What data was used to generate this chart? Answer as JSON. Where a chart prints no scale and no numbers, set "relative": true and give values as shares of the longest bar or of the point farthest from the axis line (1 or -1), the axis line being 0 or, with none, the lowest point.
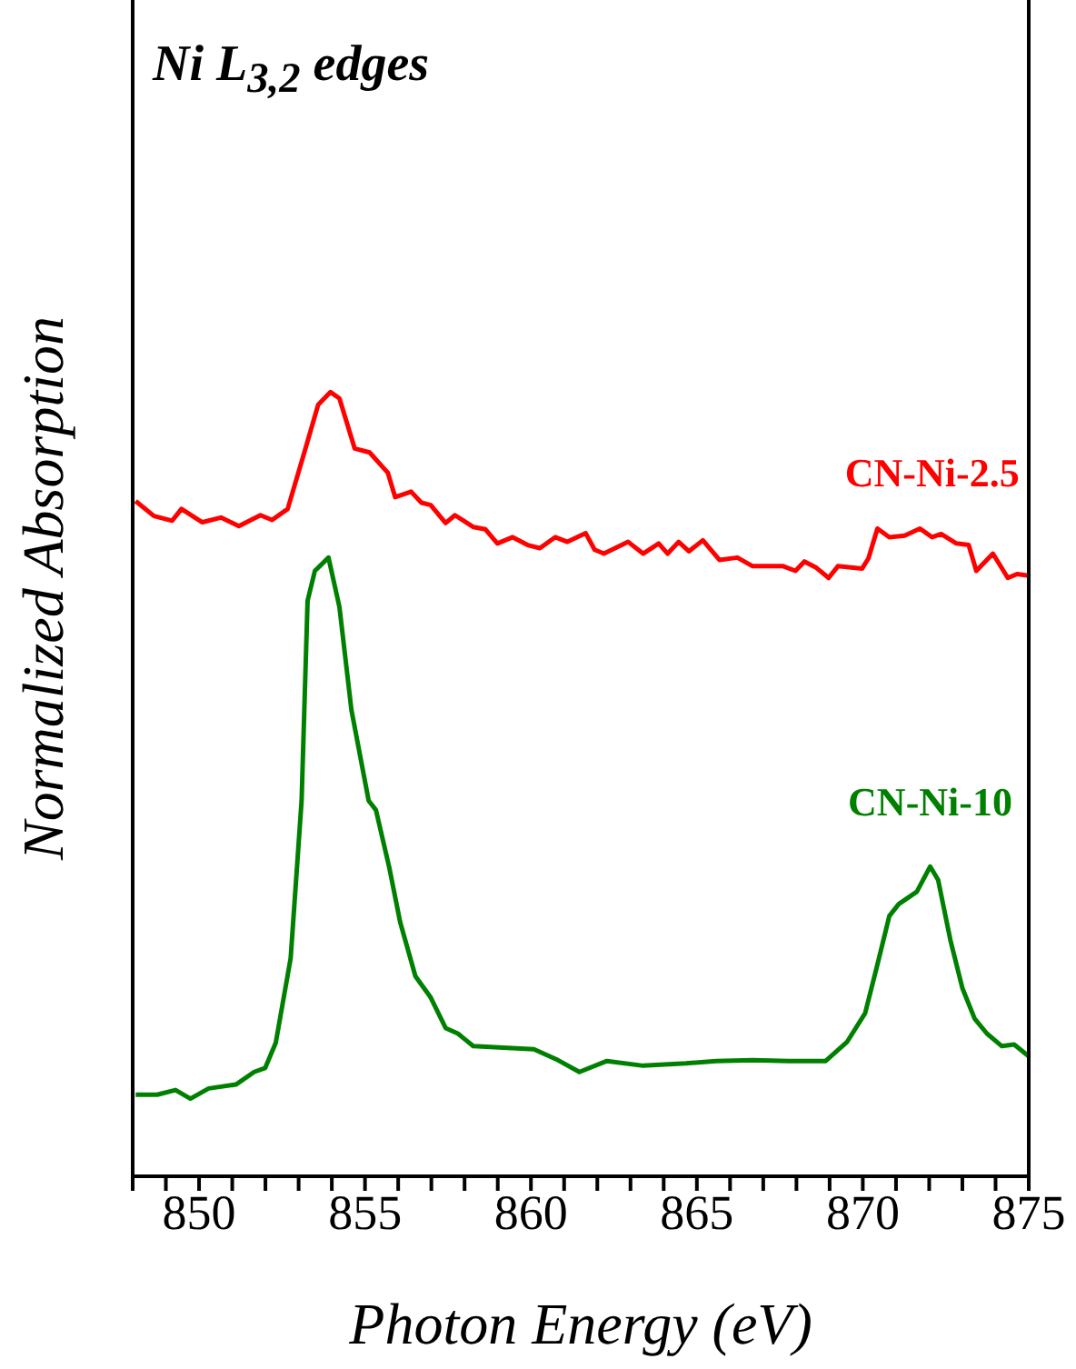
{
  "chart_data": {
    "type": "line",
    "title": "Ni L$_{3,2}$ edges",
    "xlabel": "Photon Energy (eV)",
    "ylabel": "Normalized Absorption",
    "relative": true,
    "xlim": [
      848,
      875
    ],
    "xticks": [
      {
        "value": 848,
        "label": null
      },
      {
        "value": 849,
        "label": null
      },
      850,
      {
        "value": 851,
        "label": null
      },
      {
        "value": 852,
        "label": null
      },
      {
        "value": 853,
        "label": null
      },
      {
        "value": 854,
        "label": null
      },
      855,
      {
        "value": 856,
        "label": null
      },
      {
        "value": 857,
        "label": null
      },
      {
        "value": 858,
        "label": null
      },
      {
        "value": 859,
        "label": null
      },
      860,
      {
        "value": 861,
        "label": null
      },
      {
        "value": 862,
        "label": null
      },
      {
        "value": 863,
        "label": null
      },
      {
        "value": 864,
        "label": null
      },
      865,
      {
        "value": 866,
        "label": null
      },
      {
        "value": 867,
        "label": null
      },
      {
        "value": 868,
        "label": null
      },
      {
        "value": 869,
        "label": null
      },
      870,
      {
        "value": 871,
        "label": null
      },
      {
        "value": 872,
        "label": null
      },
      {
        "value": 873,
        "label": null
      },
      {
        "value": 874,
        "label": null
      },
      875
    ],
    "marker": "none",
    "line_style": "solid",
    "series": [
      {
        "name": "CN-Ni-2.5",
        "color": "#ff0000",
        "x": [
          848.09,
          848.64,
          849.19,
          849.47,
          850.1,
          850.66,
          851.2,
          851.85,
          852.2,
          852.67,
          853.2,
          853.59,
          853.96,
          854.23,
          854.69,
          855.14,
          855.69,
          855.91,
          856.39,
          856.7,
          856.98,
          857.43,
          857.71,
          858.26,
          858.63,
          858.99,
          859.45,
          859.9,
          860.27,
          860.73,
          861.1,
          861.65,
          861.92,
          862.2,
          862.93,
          863.38,
          863.85,
          864.12,
          864.45,
          864.76,
          865.18,
          865.68,
          866.22,
          866.68,
          867.6,
          867.97,
          868.24,
          868.6,
          868.97,
          869.25,
          869.98,
          870.17,
          870.44,
          870.8,
          871.26,
          871.72,
          872.09,
          872.36,
          872.82,
          873.19,
          873.42,
          873.92,
          874.37,
          874.65,
          875
        ],
        "values": [
          0.861,
          0.842,
          0.836,
          0.851,
          0.834,
          0.84,
          0.829,
          0.843,
          0.837,
          0.851,
          0.927,
          0.984,
          1.0,
          0.992,
          0.928,
          0.923,
          0.897,
          0.866,
          0.873,
          0.859,
          0.856,
          0.833,
          0.843,
          0.828,
          0.825,
          0.807,
          0.815,
          0.805,
          0.801,
          0.815,
          0.809,
          0.82,
          0.799,
          0.794,
          0.809,
          0.794,
          0.807,
          0.794,
          0.809,
          0.797,
          0.811,
          0.786,
          0.789,
          0.778,
          0.778,
          0.772,
          0.784,
          0.776,
          0.763,
          0.778,
          0.775,
          0.788,
          0.826,
          0.815,
          0.817,
          0.826,
          0.815,
          0.819,
          0.807,
          0.805,
          0.772,
          0.794,
          0.763,
          0.768,
          0.766
        ]
      },
      {
        "name": "CN-Ni-10",
        "color": "#008000",
        "x": [
          848.09,
          848.74,
          849.29,
          849.74,
          850.29,
          851.11,
          851.66,
          851.99,
          852.31,
          852.76,
          853.09,
          853.27,
          853.49,
          853.9,
          854.23,
          854.59,
          855.11,
          855.33,
          855.73,
          856.06,
          856.52,
          856.98,
          857.43,
          857.8,
          858.26,
          859.17,
          860.09,
          860.82,
          861.46,
          862.29,
          863.38,
          864.67,
          865.58,
          866.68,
          867.78,
          868.88,
          869.52,
          870.07,
          870.44,
          870.8,
          871.08,
          871.63,
          872.03,
          872.27,
          872.64,
          873.0,
          873.37,
          873.74,
          874.19,
          874.56,
          875
        ],
        "values": [
          0.104,
          0.104,
          0.11,
          0.099,
          0.112,
          0.117,
          0.133,
          0.138,
          0.17,
          0.278,
          0.479,
          0.734,
          0.772,
          0.789,
          0.726,
          0.595,
          0.479,
          0.467,
          0.394,
          0.324,
          0.255,
          0.228,
          0.189,
          0.182,
          0.166,
          0.164,
          0.162,
          0.148,
          0.133,
          0.147,
          0.141,
          0.144,
          0.147,
          0.148,
          0.147,
          0.147,
          0.171,
          0.208,
          0.27,
          0.332,
          0.347,
          0.363,
          0.395,
          0.378,
          0.301,
          0.24,
          0.201,
          0.182,
          0.166,
          0.168,
          0.153
        ]
      }
    ]
  }
}
